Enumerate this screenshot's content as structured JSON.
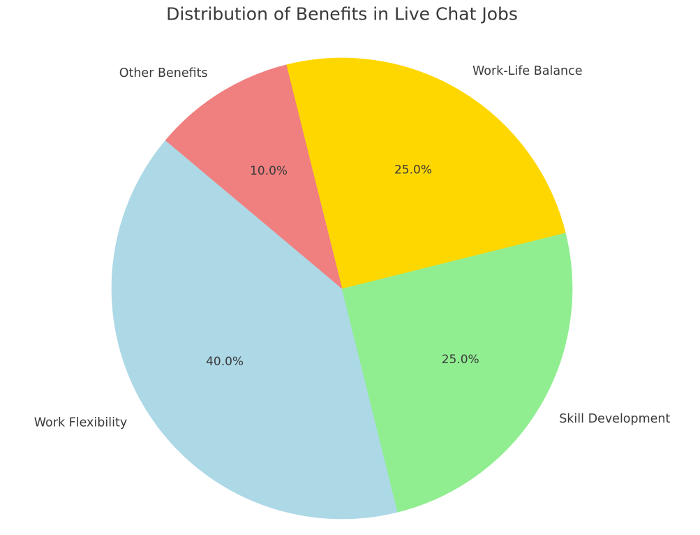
{
  "chart_data": {
    "type": "pie",
    "title": "Distribution of Benefits in Live Chat Jobs",
    "slices": [
      {
        "label": "Work Flexibility",
        "value": 40.0,
        "pct_label": "40.0%",
        "color": "#ADD8E6"
      },
      {
        "label": "Skill Development",
        "value": 25.0,
        "pct_label": "25.0%",
        "color": "#90EE90"
      },
      {
        "label": "Work-Life Balance",
        "value": 25.0,
        "pct_label": "25.0%",
        "color": "#FFD700"
      },
      {
        "label": "Other Benefits",
        "value": 10.0,
        "pct_label": "10.0%",
        "color": "#F08080"
      }
    ],
    "layout": {
      "start_angle_deg": 140,
      "counterclockwise": true,
      "pct_distance": 0.6,
      "label_distance": 1.1,
      "legend": "none",
      "grid": "off",
      "background_color": "#FFFFFF",
      "text_color": "#3A3A3A"
    }
  }
}
